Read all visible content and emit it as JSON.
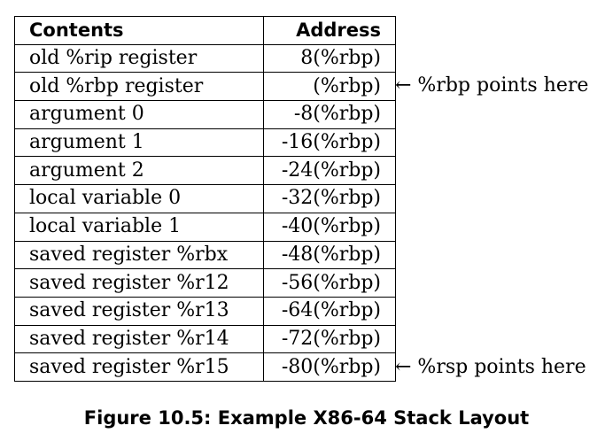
{
  "table": {
    "headers": {
      "contents": "Contents",
      "address": "Address"
    },
    "rows": [
      {
        "contents": "old %rip register",
        "address": "8(%rbp)"
      },
      {
        "contents": "old %rbp register",
        "address": "(%rbp)"
      },
      {
        "contents": "argument 0",
        "address": "-8(%rbp)"
      },
      {
        "contents": "argument 1",
        "address": "-16(%rbp)"
      },
      {
        "contents": "argument 2",
        "address": "-24(%rbp)"
      },
      {
        "contents": "local variable 0",
        "address": "-32(%rbp)"
      },
      {
        "contents": "local variable 1",
        "address": "-40(%rbp)"
      },
      {
        "contents": "saved register %rbx",
        "address": "-48(%rbp)"
      },
      {
        "contents": "saved register %r12",
        "address": "-56(%rbp)"
      },
      {
        "contents": "saved register %r13",
        "address": "-64(%rbp)"
      },
      {
        "contents": "saved register %r14",
        "address": "-72(%rbp)"
      },
      {
        "contents": "saved register %r15",
        "address": "-80(%rbp)"
      }
    ]
  },
  "pointers": {
    "rbp": "← %rbp points here",
    "rsp": "← %rsp points here"
  },
  "caption": "Figure 10.5: Example X86-64 Stack Layout"
}
